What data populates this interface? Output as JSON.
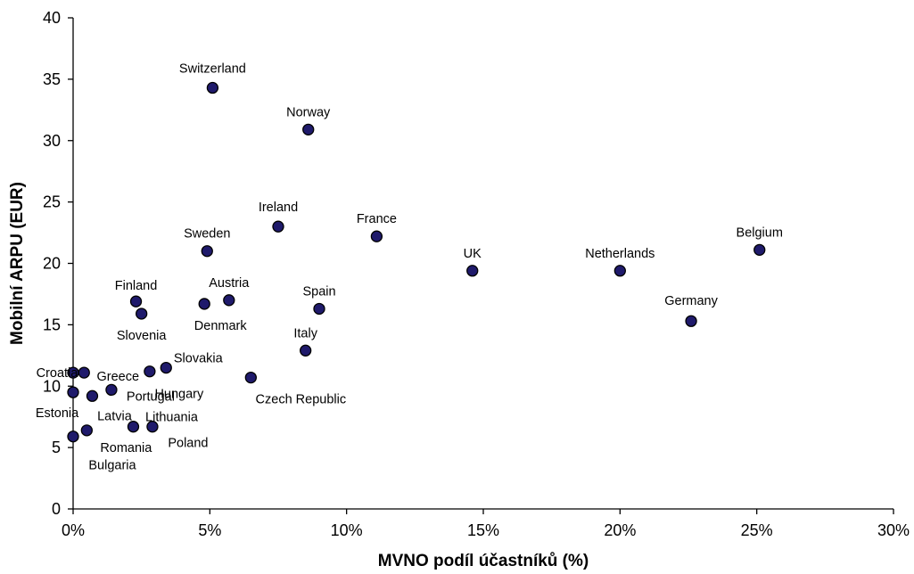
{
  "chart_data": {
    "type": "scatter",
    "title": "",
    "xlabel": "MVNO podíl účastníků (%)",
    "ylabel": "Mobilní ARPU (EUR)",
    "xlim": [
      0,
      30
    ],
    "ylim": [
      0,
      40
    ],
    "x_ticks": [
      "0%",
      "5%",
      "10%",
      "15%",
      "20%",
      "25%",
      "30%"
    ],
    "y_ticks": [
      "0",
      "5",
      "10",
      "15",
      "20",
      "25",
      "30",
      "35",
      "40"
    ],
    "grid": false,
    "legend": "none",
    "marker_color": "#1f1a6b",
    "points": [
      {
        "label": "Switzerland",
        "x": 5.1,
        "y": 34.3
      },
      {
        "label": "Norway",
        "x": 8.6,
        "y": 30.9
      },
      {
        "label": "Ireland",
        "x": 7.5,
        "y": 23.0
      },
      {
        "label": "France",
        "x": 11.1,
        "y": 22.2
      },
      {
        "label": "Belgium",
        "x": 25.1,
        "y": 21.1
      },
      {
        "label": "Sweden",
        "x": 4.9,
        "y": 21.0
      },
      {
        "label": "UK",
        "x": 14.6,
        "y": 19.4
      },
      {
        "label": "Netherlands",
        "x": 20.0,
        "y": 19.4
      },
      {
        "label": "Austria",
        "x": 5.7,
        "y": 17.0
      },
      {
        "label": "Finland",
        "x": 2.3,
        "y": 16.9
      },
      {
        "label": "Denmark",
        "x": 4.8,
        "y": 16.7
      },
      {
        "label": "Spain",
        "x": 9.0,
        "y": 16.3
      },
      {
        "label": "Slovenia",
        "x": 2.5,
        "y": 15.9
      },
      {
        "label": "Germany",
        "x": 22.6,
        "y": 15.3
      },
      {
        "label": "Italy",
        "x": 8.5,
        "y": 12.9
      },
      {
        "label": "Slovakia",
        "x": 3.4,
        "y": 11.5
      },
      {
        "label": "Hungary",
        "x": 2.8,
        "y": 11.2
      },
      {
        "label": "Greece",
        "x": 0.4,
        "y": 11.1
      },
      {
        "label": "Croatia",
        "x": 0.0,
        "y": 11.1
      },
      {
        "label": "Czech Republic",
        "x": 6.5,
        "y": 10.7
      },
      {
        "label": "Portugal",
        "x": 1.4,
        "y": 9.7
      },
      {
        "label": "Estonia",
        "x": 0.0,
        "y": 9.5
      },
      {
        "label": "Latvia",
        "x": 0.7,
        "y": 9.2
      },
      {
        "label": "Lithuania",
        "x": 2.2,
        "y": 6.7
      },
      {
        "label": "Poland",
        "x": 2.9,
        "y": 6.7
      },
      {
        "label": "Romania",
        "x": 0.5,
        "y": 6.4
      },
      {
        "label": "Bulgaria",
        "x": 0.0,
        "y": 5.9
      }
    ]
  }
}
